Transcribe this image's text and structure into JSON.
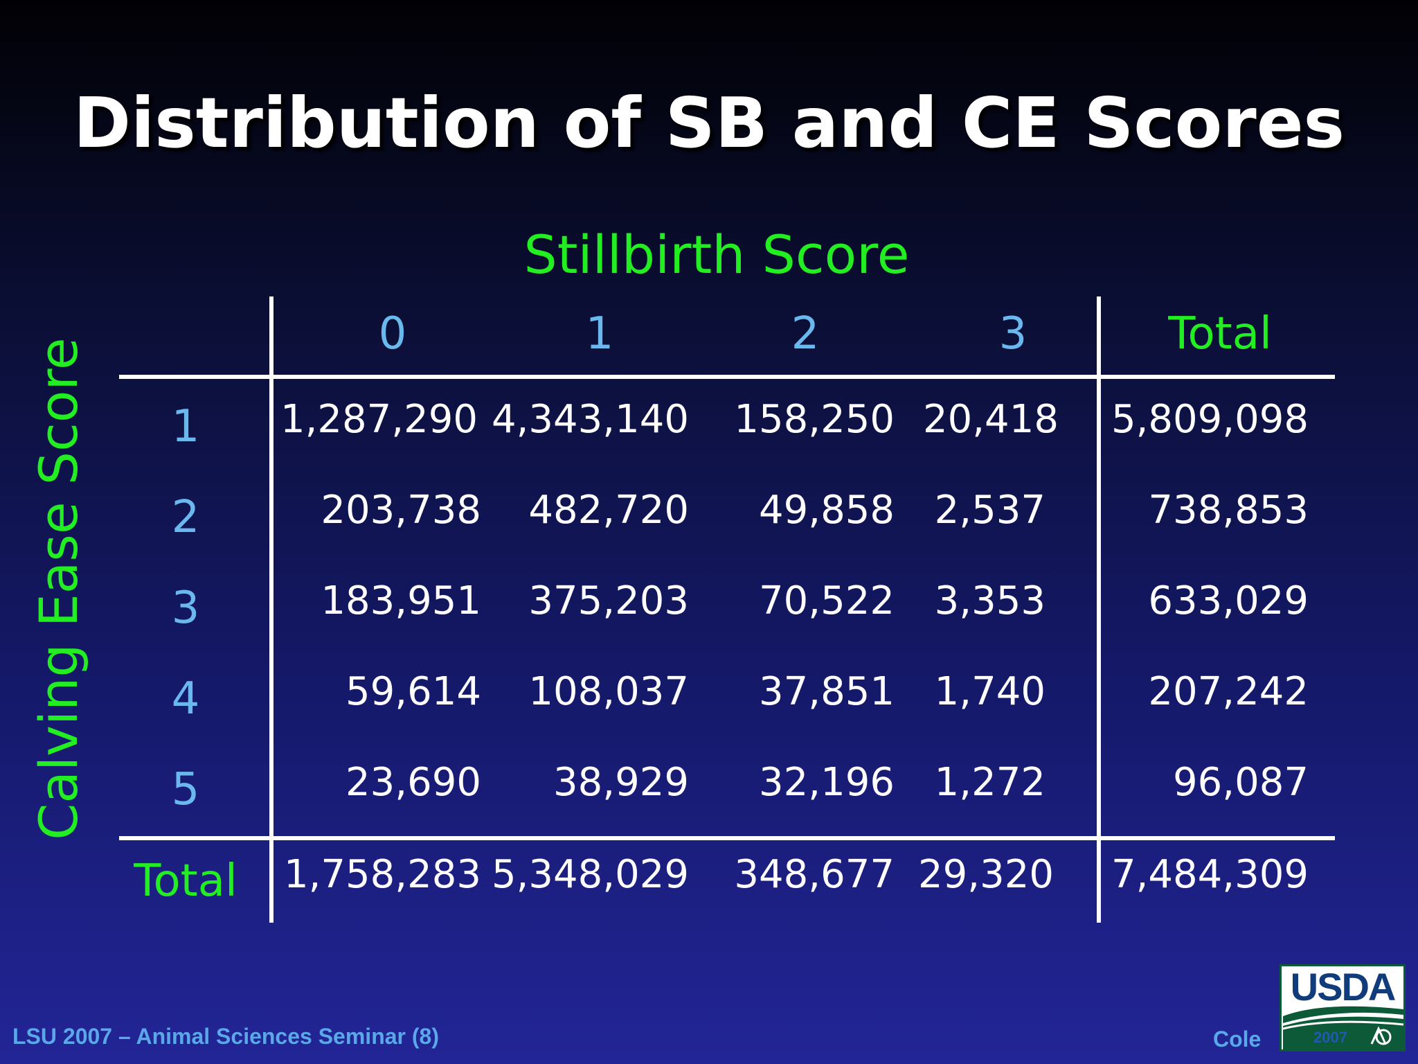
{
  "slide": {
    "title": "Distribution of SB and CE Scores",
    "column_axis_label": "Stillbirth Score",
    "row_axis_label": "Calving Ease Score",
    "columns": [
      "0",
      "1",
      "2",
      "3",
      "Total"
    ],
    "rows": [
      {
        "label": "1",
        "values": [
          "1,287,290",
          "4,343,140",
          "158,250",
          "20,418",
          "5,809,098"
        ]
      },
      {
        "label": "2",
        "values": [
          "203,738",
          "482,720",
          "49,858",
          "2,537",
          "738,853"
        ]
      },
      {
        "label": "3",
        "values": [
          "183,951",
          "375,203",
          "70,522",
          "3,353",
          "633,029"
        ]
      },
      {
        "label": "4",
        "values": [
          "59,614",
          "108,037",
          "37,851",
          "1,740",
          "207,242"
        ]
      },
      {
        "label": "5",
        "values": [
          "23,690",
          "38,929",
          "32,196",
          "1,272",
          "96,087"
        ]
      }
    ],
    "total_row": {
      "label": "Total",
      "values": [
        "1,758,283",
        "5,348,029",
        "348,677",
        "29,320",
        "7,484,309"
      ]
    },
    "footer_left": "LSU 2007 – Animal Sciences Seminar (8)",
    "footer_right": "Cole",
    "logo": {
      "text": "USDA",
      "year": "2007",
      "icon": "usda-ars-logo"
    }
  },
  "colors": {
    "header_green": "#22ee22",
    "header_blue": "#6ab8ee",
    "footer_blue": "#5aa8e8"
  }
}
